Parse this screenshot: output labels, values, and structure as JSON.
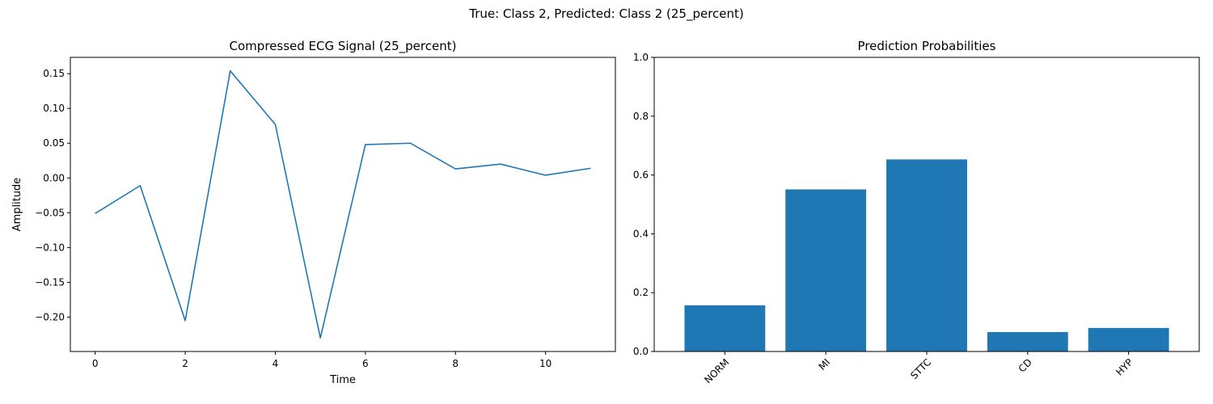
{
  "suptitle": "True: Class 2, Predicted: Class 2 (25_percent)",
  "chart_data": [
    {
      "type": "line",
      "title": "Compressed ECG Signal (25_percent)",
      "xlabel": "Time",
      "ylabel": "Amplitude",
      "x": [
        0,
        1,
        2,
        3,
        4,
        5,
        6,
        7,
        8,
        9,
        10,
        11
      ],
      "series": [
        {
          "values": [
            -0.051,
            -0.011,
            -0.205,
            0.154,
            0.077,
            -0.23,
            0.048,
            0.05,
            0.013,
            0.02,
            0.004,
            0.014
          ],
          "color": "#1f77b4"
        }
      ],
      "xlim": [
        -0.55,
        11.55
      ],
      "ylim": [
        -0.2494,
        0.1734
      ],
      "xticks": [
        0,
        2,
        4,
        6,
        8,
        10
      ],
      "xtick_labels": [
        "0",
        "2",
        "4",
        "6",
        "8",
        "10"
      ],
      "yticks": [
        -0.2,
        -0.15,
        -0.1,
        -0.05,
        0.0,
        0.05,
        0.1,
        0.15
      ],
      "ytick_labels": [
        "−0.20",
        "−0.15",
        "−0.10",
        "−0.05",
        "0.00",
        "0.05",
        "0.10",
        "0.15"
      ],
      "grid": false
    },
    {
      "type": "bar",
      "title": "Prediction Probabilities",
      "xlabel": "",
      "ylabel": "",
      "categories": [
        "NORM",
        "MI",
        "STTC",
        "CD",
        "HYP"
      ],
      "values": [
        0.157,
        0.551,
        0.653,
        0.066,
        0.08
      ],
      "color": "#1f77b4",
      "ylim": [
        0,
        1.0
      ],
      "yticks": [
        0.0,
        0.2,
        0.4,
        0.6,
        0.8,
        1.0
      ],
      "ytick_labels": [
        "0.0",
        "0.2",
        "0.4",
        "0.6",
        "0.8",
        "1.0"
      ],
      "xtick_rotation": 45,
      "grid": false
    }
  ]
}
